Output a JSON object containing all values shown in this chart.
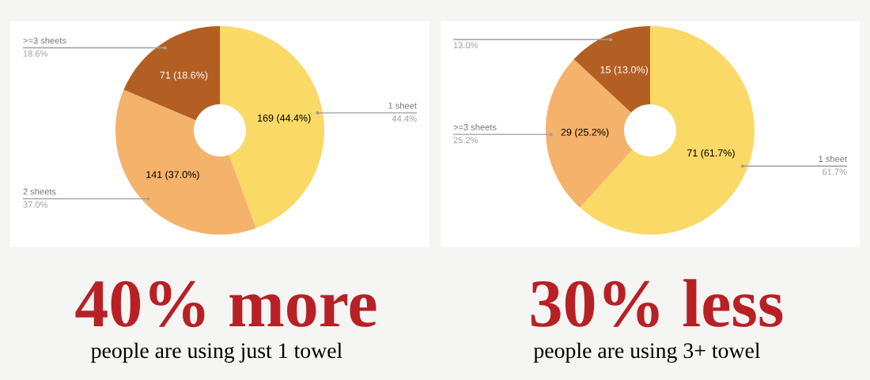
{
  "chart_data": [
    {
      "type": "donut",
      "title": "40% more",
      "subtitle": "people are using just 1 towel",
      "categories": [
        "1 sheet",
        "2 sheets",
        ">=3 sheets"
      ],
      "values": [
        169,
        141,
        71
      ],
      "colors": [
        "#fad966",
        "#f5b26b",
        "#b35f24"
      ],
      "value_labels": [
        "169 (44.4%)",
        "141 (37.0%)",
        "71 (18.6%)"
      ],
      "annotations": [
        "44.4%",
        "37.0%",
        "18.6%"
      ]
    },
    {
      "type": "donut",
      "title": "30% less",
      "subtitle": "people are using 3+ towel",
      "categories": [
        "1 sheet",
        ">=3 sheets",
        null
      ],
      "values": [
        71,
        29,
        15
      ],
      "colors": [
        "#fad966",
        "#f5b26b",
        "#b35f24"
      ],
      "value_labels": [
        "71 (61.7%)",
        "29 (25.2%)",
        "15 (13.0%)"
      ],
      "annotations": [
        "61.7%",
        "25.2%",
        "13.0%"
      ]
    }
  ]
}
